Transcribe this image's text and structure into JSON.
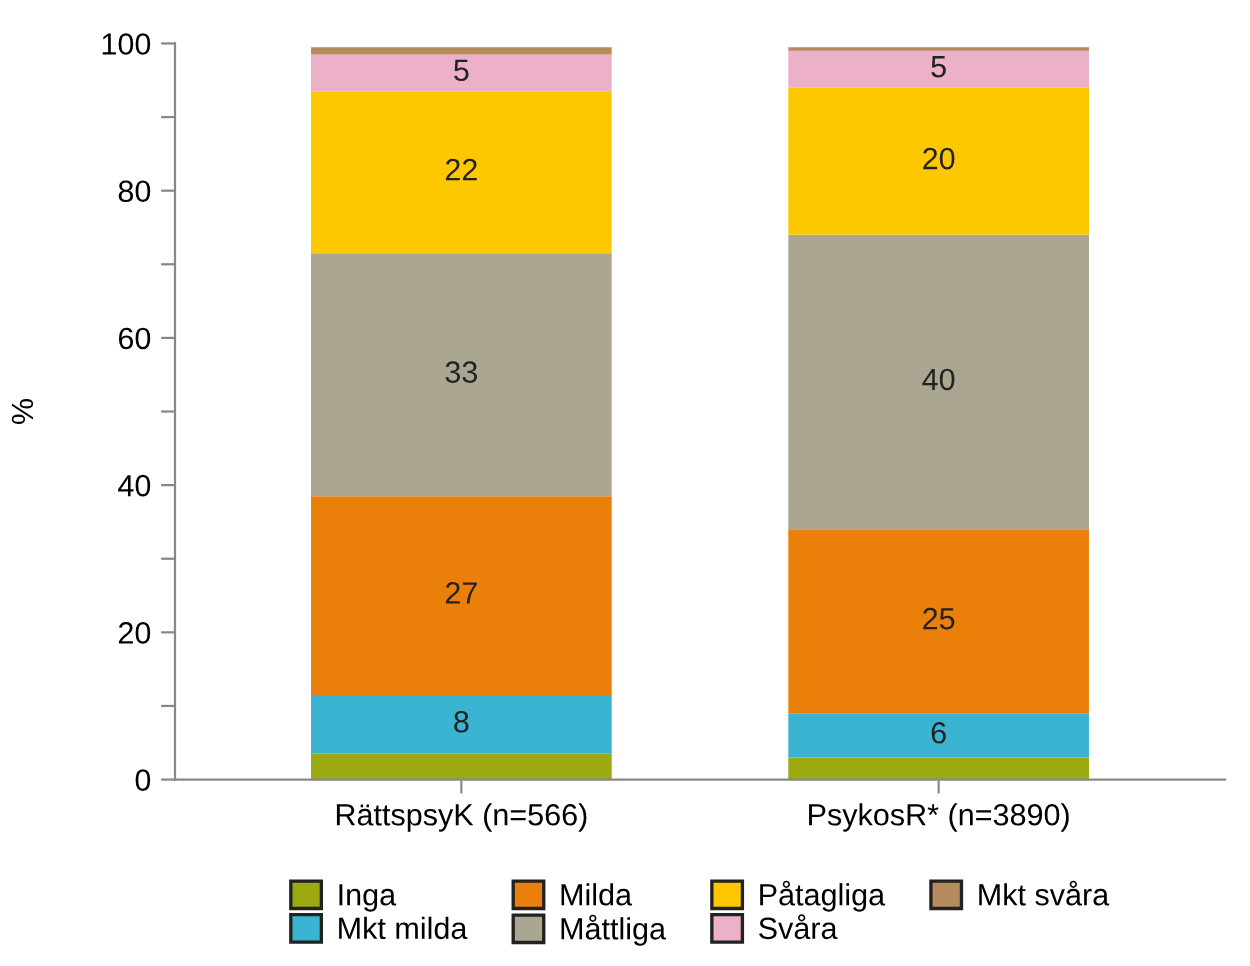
{
  "chart_data": {
    "type": "bar",
    "stacked": true,
    "ylabel": "%",
    "categories": [
      "RättspsyK (n=566)",
      "PsykosR* (n=3890)"
    ],
    "ylim": [
      0,
      100
    ],
    "yticks": [
      0,
      {
        "value": 10,
        "label": null
      },
      20,
      {
        "value": 30,
        "label": null
      },
      40,
      {
        "value": 50,
        "label": null
      },
      60,
      {
        "value": 70,
        "label": null
      },
      80,
      {
        "value": 90,
        "label": null
      },
      100
    ],
    "legend": "bottom",
    "grid": false,
    "series": [
      {
        "name": "Inga",
        "color": "#9aaa10",
        "values": [
          3.5,
          3
        ],
        "value_labels": [
          null,
          null
        ]
      },
      {
        "name": "Mkt milda",
        "color": "#3ab4d2",
        "values": [
          8,
          6
        ],
        "value_labels": [
          "8",
          "6"
        ]
      },
      {
        "name": "Milda",
        "color": "#ea7f0a",
        "values": [
          27,
          25
        ],
        "value_labels": [
          "27",
          "25"
        ]
      },
      {
        "name": "Måttliga",
        "color": "#aba692",
        "values": [
          33,
          40
        ],
        "value_labels": [
          "33",
          "40"
        ]
      },
      {
        "name": "Påtagliga",
        "color": "#fdc800",
        "values": [
          22,
          20
        ],
        "value_labels": [
          "22",
          "20"
        ]
      },
      {
        "name": "Svåra",
        "color": "#ecb0c9",
        "values": [
          5,
          5
        ],
        "value_labels": [
          "5",
          "5"
        ]
      },
      {
        "name": "Mkt svåra",
        "color": "#b58a5c",
        "values": [
          1,
          0.5
        ],
        "value_labels": [
          null,
          null
        ]
      }
    ]
  }
}
